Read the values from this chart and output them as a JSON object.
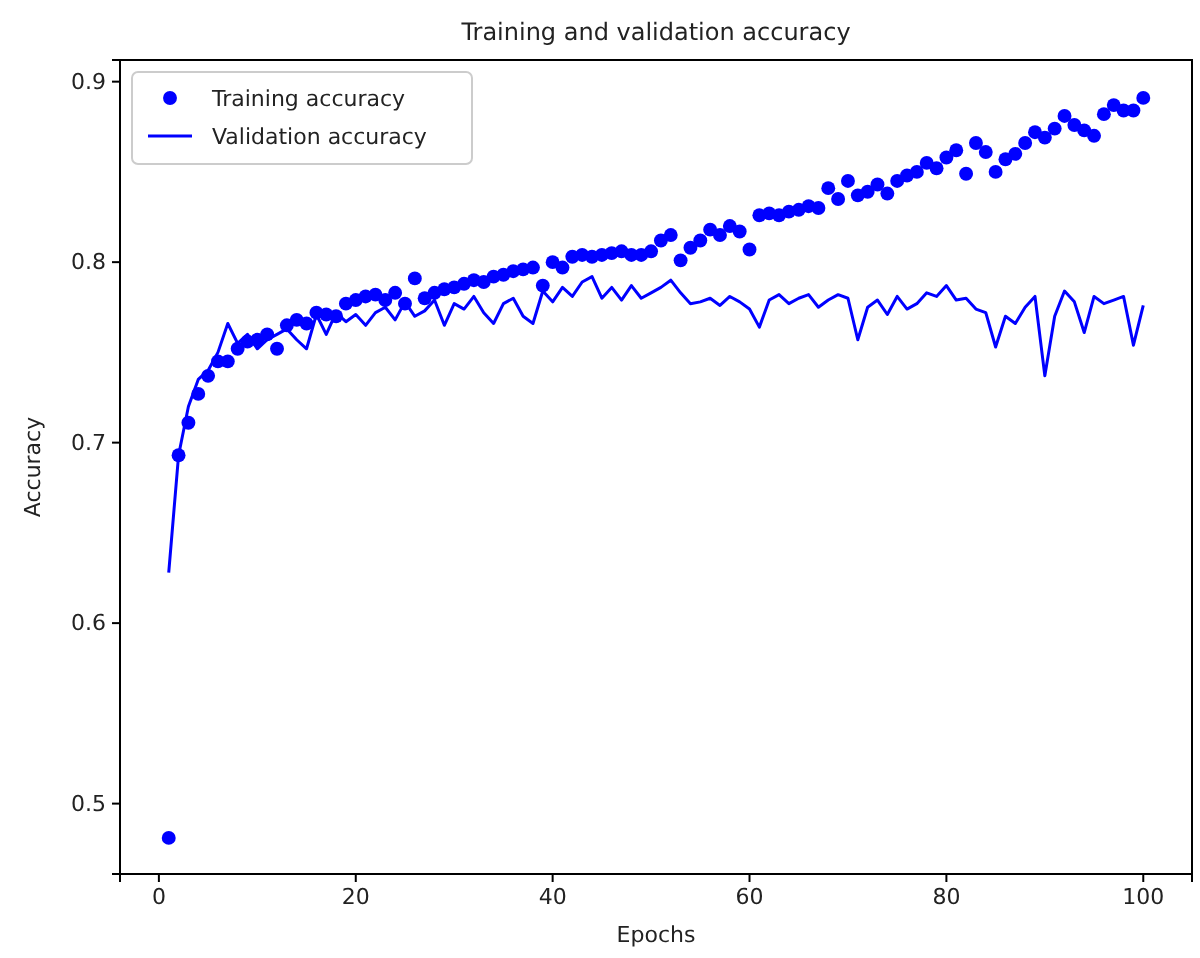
{
  "chart_data": {
    "type": "scatter",
    "title": "Training and validation accuracy",
    "xlabel": "Epochs",
    "ylabel": "Accuracy",
    "x": [
      1,
      2,
      3,
      4,
      5,
      6,
      7,
      8,
      9,
      10,
      11,
      12,
      13,
      14,
      15,
      16,
      17,
      18,
      19,
      20,
      21,
      22,
      23,
      24,
      25,
      26,
      27,
      28,
      29,
      30,
      31,
      32,
      33,
      34,
      35,
      36,
      37,
      38,
      39,
      40,
      41,
      42,
      43,
      44,
      45,
      46,
      47,
      48,
      49,
      50,
      51,
      52,
      53,
      54,
      55,
      56,
      57,
      58,
      59,
      60,
      61,
      62,
      63,
      64,
      65,
      66,
      67,
      68,
      69,
      70,
      71,
      72,
      73,
      74,
      75,
      76,
      77,
      78,
      79,
      80,
      81,
      82,
      83,
      84,
      85,
      86,
      87,
      88,
      89,
      90,
      91,
      92,
      93,
      94,
      95,
      96,
      97,
      98,
      99,
      100
    ],
    "series": [
      {
        "name": "Training accuracy",
        "marker": "circle",
        "color": "#0000ff",
        "values": [
          0.481,
          0.693,
          0.711,
          0.727,
          0.737,
          0.745,
          0.745,
          0.752,
          0.756,
          0.757,
          0.76,
          0.752,
          0.765,
          0.768,
          0.766,
          0.772,
          0.771,
          0.77,
          0.777,
          0.779,
          0.781,
          0.782,
          0.779,
          0.783,
          0.777,
          0.791,
          0.78,
          0.783,
          0.785,
          0.786,
          0.788,
          0.79,
          0.789,
          0.792,
          0.793,
          0.795,
          0.796,
          0.797,
          0.787,
          0.8,
          0.797,
          0.803,
          0.804,
          0.803,
          0.804,
          0.805,
          0.806,
          0.804,
          0.804,
          0.806,
          0.812,
          0.815,
          0.801,
          0.808,
          0.812,
          0.818,
          0.815,
          0.82,
          0.817,
          0.807,
          0.826,
          0.827,
          0.826,
          0.828,
          0.829,
          0.831,
          0.83,
          0.841,
          0.835,
          0.845,
          0.837,
          0.839,
          0.843,
          0.838,
          0.845,
          0.848,
          0.85,
          0.855,
          0.852,
          0.858,
          0.862,
          0.849,
          0.866,
          0.861,
          0.85,
          0.857,
          0.86,
          0.866,
          0.872,
          0.869,
          0.874,
          0.881,
          0.876,
          0.873,
          0.87,
          0.882,
          0.887,
          0.884,
          0.884,
          0.891
        ]
      },
      {
        "name": "Validation accuracy",
        "type": "line",
        "marker": "none",
        "line_style": "solid",
        "color": "#0000ff",
        "values": [
          0.628,
          0.693,
          0.72,
          0.735,
          0.74,
          0.75,
          0.766,
          0.755,
          0.76,
          0.752,
          0.757,
          0.76,
          0.763,
          0.757,
          0.752,
          0.771,
          0.76,
          0.772,
          0.767,
          0.771,
          0.765,
          0.772,
          0.775,
          0.768,
          0.778,
          0.77,
          0.773,
          0.779,
          0.765,
          0.777,
          0.774,
          0.781,
          0.772,
          0.766,
          0.777,
          0.78,
          0.77,
          0.766,
          0.784,
          0.778,
          0.786,
          0.781,
          0.789,
          0.792,
          0.78,
          0.786,
          0.779,
          0.787,
          0.78,
          0.783,
          0.786,
          0.79,
          0.783,
          0.777,
          0.778,
          0.78,
          0.776,
          0.781,
          0.778,
          0.774,
          0.764,
          0.779,
          0.782,
          0.777,
          0.78,
          0.782,
          0.775,
          0.779,
          0.782,
          0.78,
          0.757,
          0.775,
          0.779,
          0.771,
          0.781,
          0.774,
          0.777,
          0.783,
          0.781,
          0.787,
          0.779,
          0.78,
          0.774,
          0.772,
          0.753,
          0.77,
          0.766,
          0.775,
          0.781,
          0.737,
          0.77,
          0.784,
          0.778,
          0.761,
          0.781,
          0.777,
          0.779,
          0.781,
          0.754,
          0.776
        ]
      }
    ],
    "xlim": [
      -3.95,
      104.95
    ],
    "ylim": [
      0.461,
      0.912
    ],
    "xticks": [
      0,
      20,
      40,
      60,
      80,
      100
    ],
    "yticks": [
      0.5,
      0.6,
      0.7,
      0.8,
      0.9
    ],
    "grid": false,
    "legend": "top left"
  }
}
